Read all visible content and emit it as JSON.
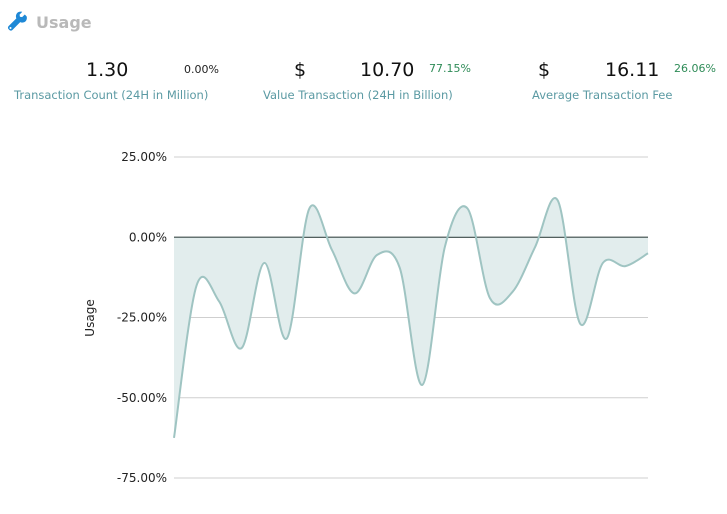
{
  "header": {
    "title": "Usage",
    "icon": "wrench-icon"
  },
  "stats": [
    {
      "value": "1.30",
      "currency": "",
      "change": "0.00%",
      "change_color": "#222222",
      "label": "Transaction Count (24H in Million)"
    },
    {
      "value": "10.70",
      "currency": "$",
      "change": "77.15%",
      "change_color": "#2e8b57",
      "label": "Value Transaction (24H in Billion)"
    },
    {
      "value": "16.11",
      "currency": "$",
      "change": "26.06%",
      "change_color": "#2e8b57",
      "label": "Average Transaction Fee"
    }
  ],
  "chart_data": {
    "type": "area",
    "ylabel": "Usage",
    "ylim": [
      -75,
      25
    ],
    "yticks": [
      {
        "v": 25,
        "label": "25.00%"
      },
      {
        "v": 0,
        "label": "0.00%"
      },
      {
        "v": -25,
        "label": "-25.00%"
      },
      {
        "v": -50,
        "label": "-50.00%"
      },
      {
        "v": -75,
        "label": "-75.00%"
      }
    ],
    "grid": true,
    "line_color": "#9fc4c2",
    "fill_color": "#e2eded",
    "series": [
      {
        "values": [
          -62.5,
          -15,
          -20,
          -34.5,
          -8,
          -31.5,
          9,
          -4,
          -17.5,
          -5.5,
          -9.5,
          -46,
          -3,
          9,
          -19,
          -17,
          -3,
          11.5,
          -27,
          -8,
          -9,
          -5
        ]
      }
    ]
  }
}
